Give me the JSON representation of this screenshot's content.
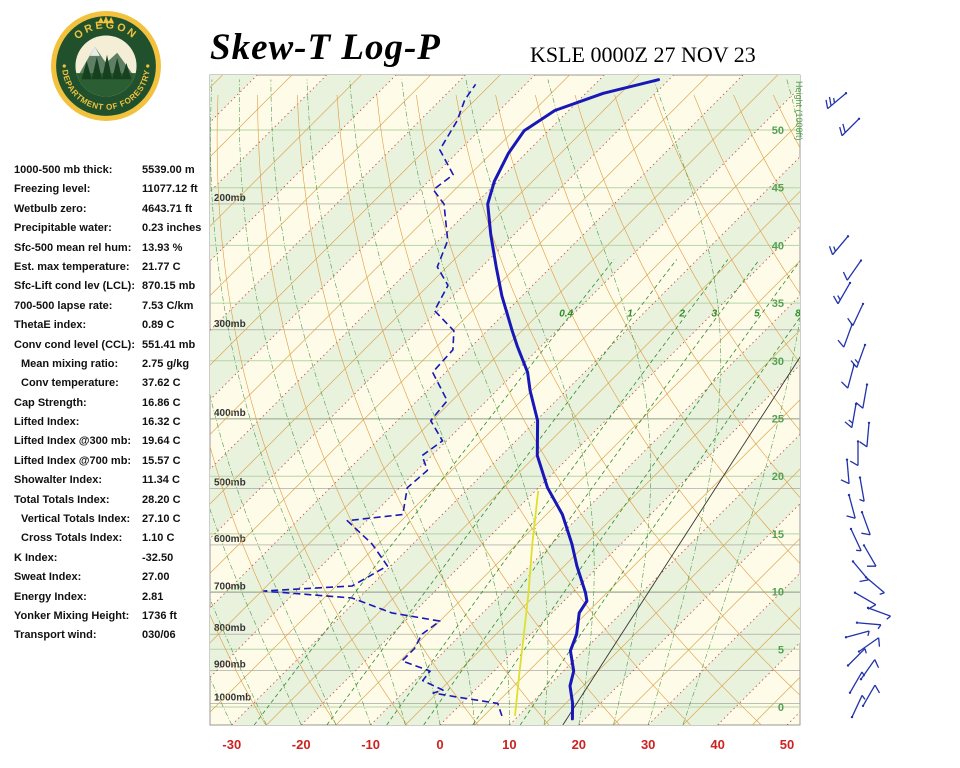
{
  "header": {
    "title": "Skew-T Log-P",
    "station": "KSLE 0000Z 27 NOV 23"
  },
  "logo": {
    "top_text": "OREGON",
    "bottom_text": "DEPARTMENT OF FORESTRY",
    "ring_color": "#20512c",
    "gold_color": "#f2c23e"
  },
  "indices": [
    {
      "label": "1000-500 mb thick:",
      "value": "5539.00 m",
      "indent": false
    },
    {
      "label": "Freezing level:",
      "value": "11077.12 ft",
      "indent": false
    },
    {
      "label": "Wetbulb zero:",
      "value": "4643.71 ft",
      "indent": false
    },
    {
      "label": "Precipitable water:",
      "value": "0.23 inches",
      "indent": false
    },
    {
      "label": "Sfc-500 mean rel hum:",
      "value": "13.93 %",
      "indent": false
    },
    {
      "label": "Est. max temperature:",
      "value": "21.77 C",
      "indent": false
    },
    {
      "label": "Sfc-Lift cond lev (LCL):",
      "value": "870.15 mb",
      "indent": false
    },
    {
      "label": "700-500 lapse rate:",
      "value": "7.53 C/km",
      "indent": false
    },
    {
      "label": "ThetaE index:",
      "value": "0.89 C",
      "indent": false
    },
    {
      "label": "Conv cond level (CCL):",
      "value": "551.41 mb",
      "indent": false
    },
    {
      "label": "Mean mixing ratio:",
      "value": "2.75 g/kg",
      "indent": true
    },
    {
      "label": "Conv temperature:",
      "value": "37.62 C",
      "indent": true
    },
    {
      "label": "Cap Strength:",
      "value": "16.86 C",
      "indent": false
    },
    {
      "label": "Lifted Index:",
      "value": "16.32 C",
      "indent": false
    },
    {
      "label": "Lifted Index @300 mb:",
      "value": "19.64 C",
      "indent": false
    },
    {
      "label": "Lifted Index @700 mb:",
      "value": "15.57 C",
      "indent": false
    },
    {
      "label": "Showalter Index:",
      "value": "11.34 C",
      "indent": false
    },
    {
      "label": "Total Totals Index:",
      "value": "28.20 C",
      "indent": false
    },
    {
      "label": "Vertical Totals Index:",
      "value": "27.10 C",
      "indent": true
    },
    {
      "label": "Cross Totals Index:",
      "value": "1.10 C",
      "indent": true
    },
    {
      "label": "K Index:",
      "value": "-32.50",
      "indent": false
    },
    {
      "label": "Sweat Index:",
      "value": "27.00",
      "indent": false
    },
    {
      "label": "Energy Index:",
      "value": "2.81",
      "indent": false
    },
    {
      "label": "Yonker Mixing Height:",
      "value": "1736 ft",
      "indent": false
    },
    {
      "label": "Transport wind:",
      "value": "030/06",
      "indent": false
    }
  ],
  "chart_data": {
    "type": "line",
    "subtype": "skew-t-log-p",
    "title": "Skew-T Log-P",
    "station": "KSLE 0000Z 27 NOV 23",
    "pressure_axis": {
      "top_mb": 132,
      "bottom_mb": 1072,
      "labels_mb": [
        200,
        300,
        400,
        500,
        600,
        700,
        800,
        900,
        1000
      ],
      "unit": "mb"
    },
    "temp_axis": {
      "min_c": -30,
      "max_c": 50,
      "ticks": [
        -30,
        -20,
        -10,
        0,
        10,
        20,
        30,
        40,
        50
      ],
      "label_color": "#cc2222"
    },
    "height_axis": {
      "title": "Height (1000ft)",
      "labels": [
        0,
        5,
        10,
        15,
        20,
        25,
        30,
        35,
        40,
        45,
        50
      ],
      "color": "#55a055"
    },
    "mixing_ratio_lines_gkg": [
      0.4,
      1,
      2,
      3,
      5,
      8
    ],
    "temperature_profile": [
      [
        1051,
        18.2
      ],
      [
        1000,
        16.0
      ],
      [
        945,
        13.1
      ],
      [
        901,
        11.5
      ],
      [
        844,
        8.1
      ],
      [
        800,
        6.6
      ],
      [
        747,
        3.9
      ],
      [
        719,
        3.3
      ],
      [
        700,
        1.9
      ],
      [
        642,
        -3.2
      ],
      [
        598,
        -7.1
      ],
      [
        544,
        -12.7
      ],
      [
        499,
        -18.7
      ],
      [
        450,
        -24.8
      ],
      [
        402,
        -29.8
      ],
      [
        365,
        -35.2
      ],
      [
        344,
        -38.2
      ],
      [
        316,
        -43.5
      ],
      [
        301,
        -46.4
      ],
      [
        269,
        -52.9
      ],
      [
        245,
        -57.9
      ],
      [
        221,
        -63.3
      ],
      [
        200,
        -68.2
      ],
      [
        186,
        -70.5
      ],
      [
        170,
        -72.5
      ],
      [
        158,
        -73.5
      ],
      [
        148,
        -72.0
      ],
      [
        140,
        -67.5
      ],
      [
        134,
        -61.5
      ]
    ],
    "dewpoint_profile": [
      [
        1041,
        7.6
      ],
      [
        1000,
        5.2
      ],
      [
        980,
        -1.4
      ],
      [
        967,
        -5.6
      ],
      [
        958,
        -4.6
      ],
      [
        929,
        -8.9
      ],
      [
        901,
        -9.2
      ],
      [
        872,
        -14.7
      ],
      [
        838,
        -14.7
      ],
      [
        800,
        -15.7
      ],
      [
        767,
        -15.0
      ],
      [
        747,
        -23.1
      ],
      [
        712,
        -31.0
      ],
      [
        696,
        -44.7
      ],
      [
        685,
        -32.7
      ],
      [
        642,
        -30.5
      ],
      [
        598,
        -35.9
      ],
      [
        555,
        -42.8
      ],
      [
        544,
        -35.7
      ],
      [
        499,
        -38.9
      ],
      [
        472,
        -38.5
      ],
      [
        450,
        -41.4
      ],
      [
        429,
        -40.6
      ],
      [
        402,
        -45.2
      ],
      [
        377,
        -45.7
      ],
      [
        344,
        -51.9
      ],
      [
        320,
        -52.2
      ],
      [
        301,
        -54.8
      ],
      [
        282,
        -60.5
      ],
      [
        260,
        -62.2
      ],
      [
        245,
        -66.4
      ],
      [
        225,
        -68.7
      ],
      [
        200,
        -74.5
      ],
      [
        191,
        -78.1
      ],
      [
        182,
        -77.4
      ],
      [
        168,
        -82.9
      ],
      [
        153,
        -84.6
      ],
      [
        143,
        -86.5
      ],
      [
        136,
        -87.2
      ]
    ],
    "parcel_trace": [
      [
        1041,
        9.5
      ],
      [
        901,
        3.7
      ],
      [
        800,
        -1.0
      ],
      [
        700,
        -6.3
      ],
      [
        598,
        -12.8
      ],
      [
        504,
        -19.6
      ]
    ],
    "reference_line": [
      [
        1072,
        17.7
      ],
      [
        316,
        -1.7
      ]
    ],
    "wind_barbs": [
      [
        140,
        230,
        25
      ],
      [
        152,
        225,
        20
      ],
      [
        222,
        220,
        15
      ],
      [
        240,
        215,
        10
      ],
      [
        258,
        210,
        15
      ],
      [
        276,
        205,
        10
      ],
      [
        295,
        200,
        10
      ],
      [
        315,
        200,
        15
      ],
      [
        336,
        195,
        10
      ],
      [
        358,
        190,
        10
      ],
      [
        381,
        190,
        15
      ],
      [
        405,
        185,
        10
      ],
      [
        430,
        180,
        10
      ],
      [
        456,
        175,
        10
      ],
      [
        483,
        170,
        5
      ],
      [
        511,
        165,
        10
      ],
      [
        540,
        160,
        10
      ],
      [
        570,
        155,
        5
      ],
      [
        601,
        150,
        10
      ],
      [
        633,
        140,
        10
      ],
      [
        666,
        130,
        5
      ],
      [
        700,
        120,
        10
      ],
      [
        735,
        110,
        5
      ],
      [
        771,
        95,
        5
      ],
      [
        808,
        75,
        5
      ],
      [
        846,
        55,
        10
      ],
      [
        885,
        45,
        5
      ],
      [
        925,
        35,
        10
      ],
      [
        966,
        30,
        5
      ],
      [
        1008,
        30,
        10
      ],
      [
        1045,
        25,
        5
      ]
    ],
    "colors": {
      "temperature": "#1818b8",
      "dewpoint": "#1818b8",
      "parcel": "#e0de30",
      "isotherm": "#d8a855",
      "isotherm_dotted": "#cc4444",
      "dry_adiabat": "#e09a40",
      "moist_adiabat": "#4a9a4a",
      "mixing_ratio": "#2e8b2e",
      "height_line": "#b5d5a5",
      "pressure_line": "#9a9a9a",
      "band": "#e9f2dc",
      "background": "#fefce8",
      "wind_barb": "#2233aa"
    }
  }
}
